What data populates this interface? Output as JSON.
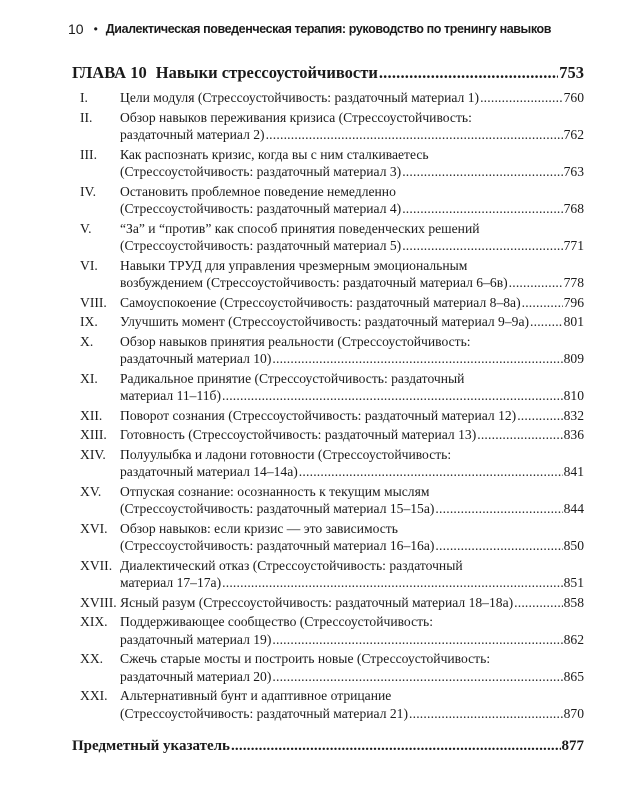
{
  "header": {
    "page_number": "10",
    "bullet": "•",
    "book_title": "Диалектическая поведенческая терапия: руководство по тренингу навыков"
  },
  "chapter": {
    "label": "ГЛАВА 10",
    "title": "Навыки стрессоустойчивости",
    "page": "753"
  },
  "entries": [
    {
      "num": "I.",
      "lines": [
        "Цели модуля (Стрессоустойчивость: раздаточный материал 1)"
      ],
      "page": "760"
    },
    {
      "num": "II.",
      "lines": [
        "Обзор навыков переживания кризиса (Стрессоустойчивость:",
        "раздаточный материал 2)"
      ],
      "page": "762"
    },
    {
      "num": "III.",
      "lines": [
        "Как распознать кризис, когда вы с ним сталкиваетесь",
        "(Стрессоустойчивость: раздаточный материал 3)"
      ],
      "page": "763"
    },
    {
      "num": "IV.",
      "lines": [
        "Остановить проблемное поведение немедленно",
        "(Стрессоустойчивость: раздаточный материал 4)"
      ],
      "page": "768"
    },
    {
      "num": "V.",
      "lines": [
        "“За” и “против” как способ принятия поведенческих решений",
        "(Стрессоустойчивость: раздаточный материал 5)"
      ],
      "page": "771"
    },
    {
      "num": "VI.",
      "lines": [
        "Навыки ТРУД для управления чрезмерным эмоциональным",
        "возбуждением (Стрессоустойчивость: раздаточный материал 6–6в)"
      ],
      "page": "778"
    },
    {
      "num": "VIII.",
      "lines": [
        "Самоуспокоение (Стрессоустойчивость: раздаточный материал 8–8а)"
      ],
      "page": "796"
    },
    {
      "num": "IX.",
      "lines": [
        "Улучшить момент (Стрессоустойчивость: раздаточный материал 9–9а)"
      ],
      "page": "801"
    },
    {
      "num": "X.",
      "lines": [
        "Обзор навыков принятия реальности (Стрессоустойчивость:",
        "раздаточный материал 10)"
      ],
      "page": "809"
    },
    {
      "num": "XI.",
      "lines": [
        "Радикальное принятие (Стрессоустойчивость: раздаточный",
        "материал 11–11б)"
      ],
      "page": "810"
    },
    {
      "num": "XII.",
      "lines": [
        "Поворот сознания (Стрессоустойчивость: раздаточный материал 12)"
      ],
      "page": "832"
    },
    {
      "num": "XIII.",
      "lines": [
        "Готовность (Стрессоустойчивость: раздаточный материал 13)"
      ],
      "page": "836"
    },
    {
      "num": "XIV.",
      "lines": [
        "Полуулыбка и ладони готовности (Стрессоустойчивость:",
        "раздаточный материал 14–14а)"
      ],
      "page": "841"
    },
    {
      "num": "XV.",
      "lines": [
        "Отпуская сознание: осознанность к текущим мыслям",
        "(Стрессоустойчивость: раздаточный материал 15–15а)"
      ],
      "page": "844"
    },
    {
      "num": "XVI.",
      "lines": [
        "Обзор навыков: если кризис — это зависимость",
        "(Стрессоустойчивость: раздаточный материал 16–16а)"
      ],
      "page": "850"
    },
    {
      "num": "XVII.",
      "lines": [
        "Диалектический отказ (Стрессоустойчивость: раздаточный",
        "материал 17–17а)"
      ],
      "page": "851"
    },
    {
      "num": "XVIII.",
      "lines": [
        "Ясный разум (Стрессоустойчивость: раздаточный материал 18–18а)"
      ],
      "page": "858"
    },
    {
      "num": "XIX.",
      "lines": [
        "Поддерживающее сообщество (Стрессоустойчивость:",
        "раздаточный материал 19)"
      ],
      "page": "862"
    },
    {
      "num": "XX.",
      "lines": [
        "Сжечь старые мосты и построить новые (Стрессоустойчивость:",
        "раздаточный материал 20)"
      ],
      "page": "865"
    },
    {
      "num": "XXI.",
      "lines": [
        "Альтернативный бунт и адаптивное отрицание",
        "(Стрессоустойчивость: раздаточный материал 21)"
      ],
      "page": "870"
    }
  ],
  "index": {
    "title": "Предметный указатель",
    "page": "877"
  }
}
